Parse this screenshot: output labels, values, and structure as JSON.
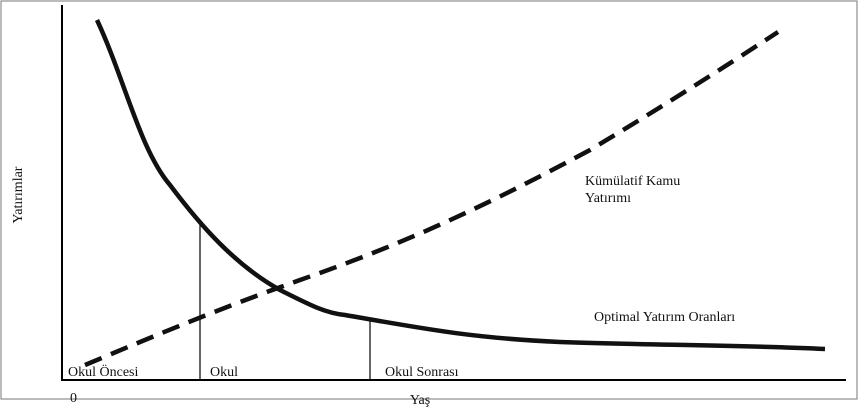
{
  "y_axis_label": "Yatırımlar",
  "x_axis_label": "Yaş",
  "origin_label": "0",
  "stages": [
    "Okul Öncesi",
    "Okul",
    "Okul Sonrası"
  ],
  "curves": {
    "cumulative": {
      "label_lines": [
        "Kümülatif Kamu",
        "Yatırımı"
      ]
    },
    "optimal": {
      "label": "Optimal Yatırım Oranları"
    }
  }
}
